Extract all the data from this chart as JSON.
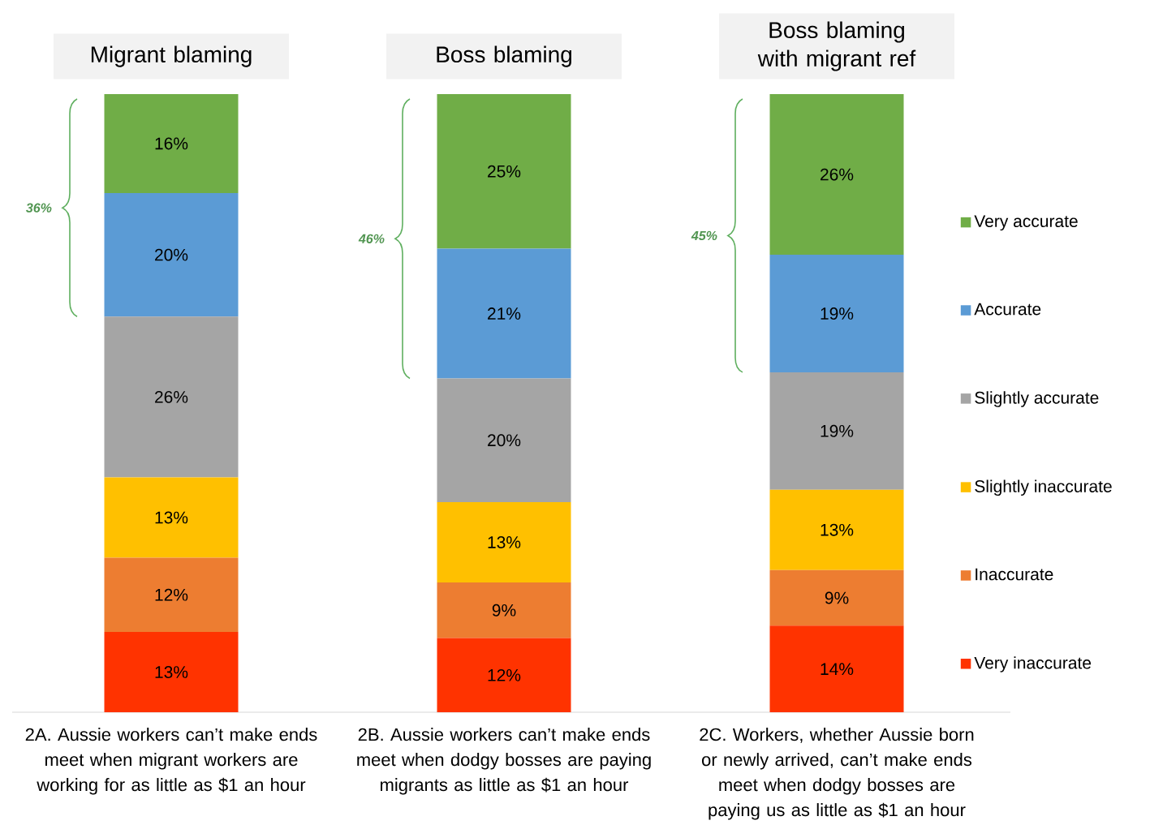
{
  "chart_data": {
    "type": "bar",
    "stacked": true,
    "categories": [
      "2A. Aussie workers can’t make ends meet when migrant workers are working for as little as $1 an hour",
      "2B. Aussie workers can’t make ends meet when dodgy bosses are paying migrants as little as $1 an hour",
      "2C. Workers, whether Aussie born or newly arrived, can’t make ends meet when dodgy bosses are paying us as little as $1 an hour"
    ],
    "series": [
      {
        "name": "Very inaccurate",
        "color": "#ff3300",
        "values": [
          13,
          12,
          14
        ],
        "value_labels": [
          "13%",
          "12%",
          "14%"
        ]
      },
      {
        "name": "Inaccurate",
        "color": "#ed7d31",
        "values": [
          12,
          9,
          9
        ],
        "value_labels": [
          "12%",
          "9%",
          "9%"
        ]
      },
      {
        "name": "Slightly inaccurate",
        "color": "#ffc000",
        "values": [
          13,
          13,
          13
        ],
        "value_labels": [
          "13%",
          "13%",
          "13%"
        ]
      },
      {
        "name": "Slightly accurate",
        "color": "#a5a5a5",
        "values": [
          26,
          20,
          19
        ],
        "value_labels": [
          "26%",
          "20%",
          "19%"
        ]
      },
      {
        "name": "Accurate",
        "color": "#5b9bd5",
        "values": [
          20,
          21,
          19
        ],
        "value_labels": [
          "20%",
          "21%",
          "19%"
        ]
      },
      {
        "name": "Very accurate",
        "color": "#70ad47",
        "values": [
          16,
          25,
          26
        ],
        "value_labels": [
          "16%",
          "25%",
          "26%"
        ]
      }
    ],
    "ylim": [
      0,
      100
    ],
    "tick_labels": "x",
    "legend": "right",
    "annotations": [
      "Migrant blaming",
      "Boss blaming",
      "Boss blaming with migrant ref",
      "36%",
      "46%",
      "45%"
    ]
  }
}
